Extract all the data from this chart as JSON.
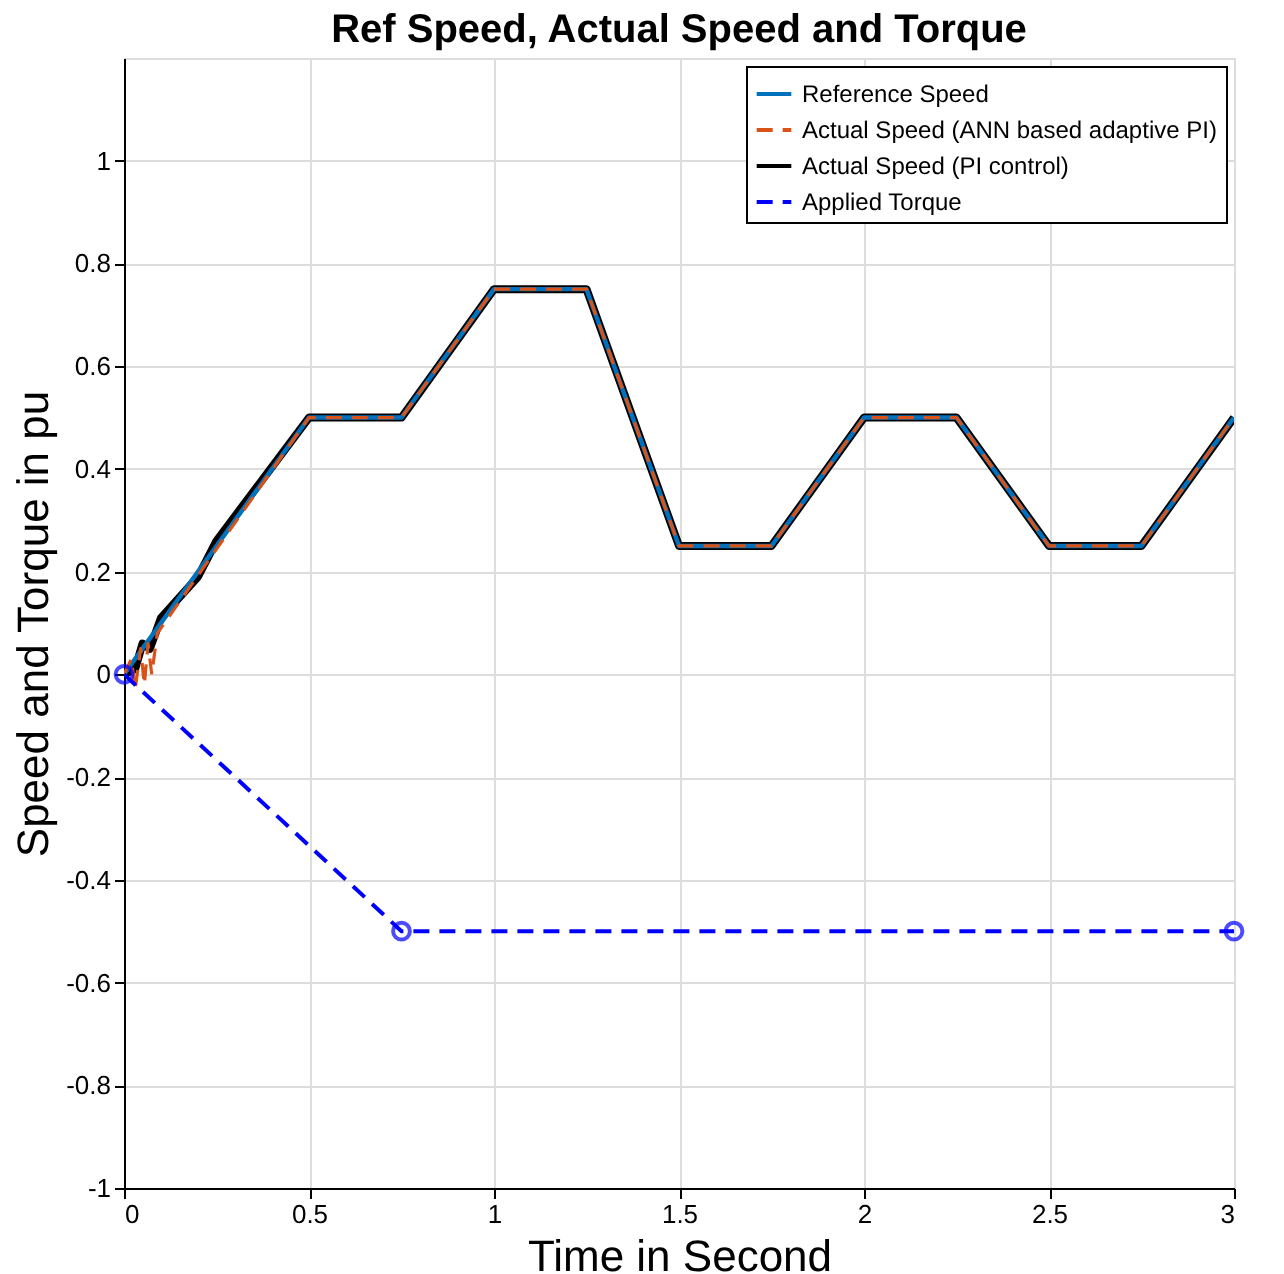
{
  "chart_data": {
    "type": "line",
    "title": "Ref Speed, Actual Speed and Torque",
    "xlabel": "Time in Second",
    "ylabel": "Speed and Torque in pu",
    "xlim": [
      0,
      3
    ],
    "xticks": [
      0,
      0.5,
      1,
      1.5,
      2,
      2.5,
      3
    ],
    "ylim": [
      -1,
      1.2
    ],
    "yticks": [
      -1,
      -0.8,
      -0.6,
      -0.4,
      -0.2,
      0,
      0.2,
      0.4,
      0.6,
      0.8,
      1
    ],
    "grid": true,
    "legend": "top right",
    "series": [
      {
        "name": "Reference Speed",
        "color": "#0072bd",
        "line_style": "solid",
        "marker": "none",
        "x": [
          0,
          0.5,
          0.75,
          1,
          1.25,
          1.5,
          1.75,
          2,
          2.25,
          2.5,
          2.75,
          3
        ],
        "values": [
          0,
          0.5,
          0.5,
          0.75,
          0.75,
          0.25,
          0.25,
          0.5,
          0.5,
          0.25,
          0.25,
          0.5
        ]
      },
      {
        "name": "Actual Speed (ANN based adaptive PI)",
        "color": "#d95319",
        "line_style": "dashed",
        "marker": "none",
        "x": [
          0,
          0.02,
          0.03,
          0.045,
          0.055,
          0.065,
          0.075,
          0.09,
          0.5,
          0.75,
          1,
          1.25,
          1.5,
          1.75,
          2,
          2.25,
          2.5,
          2.75,
          3
        ],
        "values": [
          0,
          0.03,
          -0.03,
          0.05,
          -0.02,
          0.06,
          0.0,
          0.08,
          0.5,
          0.5,
          0.75,
          0.75,
          0.25,
          0.25,
          0.5,
          0.5,
          0.25,
          0.25,
          0.5
        ]
      },
      {
        "name": "Actual Speed (PI control)",
        "color": "#000000",
        "line_style": "solid",
        "marker": "none",
        "x": [
          0,
          0.03,
          0.05,
          0.07,
          0.1,
          0.2,
          0.25,
          0.5,
          0.75,
          1,
          1.25,
          1.5,
          1.75,
          2,
          2.25,
          2.5,
          2.75,
          3
        ],
        "values": [
          0,
          0.01,
          0.06,
          0.05,
          0.11,
          0.19,
          0.26,
          0.5,
          0.5,
          0.75,
          0.75,
          0.25,
          0.25,
          0.5,
          0.5,
          0.25,
          0.25,
          0.5
        ]
      },
      {
        "name": "Applied Torque",
        "color": "#0000ff",
        "line_style": "dashed",
        "marker": "circle",
        "x": [
          0,
          0.75,
          3
        ],
        "values": [
          0,
          -0.5,
          -0.5
        ]
      }
    ]
  }
}
